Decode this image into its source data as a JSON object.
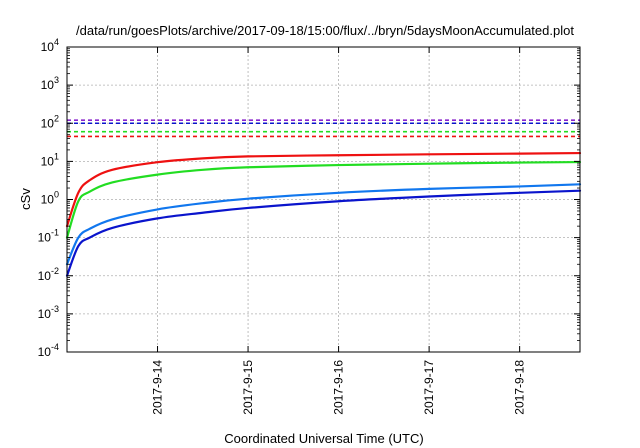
{
  "chart_data": {
    "type": "line",
    "title": "/data/run/goesPlots/archive/2017-09-18/15:00/flux/../bryn/5daysMoonAccumulated.plot",
    "xlabel": "Coordinated Universal Time (UTC)",
    "ylabel": "cSv",
    "yscale": "log",
    "ylim": [
      0.0001,
      10000
    ],
    "yticks": [
      {
        "base": "10",
        "exp": "-4",
        "value": 0.0001
      },
      {
        "base": "10",
        "exp": "-3",
        "value": 0.001
      },
      {
        "base": "10",
        "exp": "-2",
        "value": 0.01
      },
      {
        "base": "10",
        "exp": "-1",
        "value": 0.1
      },
      {
        "base": "10",
        "exp": "0",
        "value": 1
      },
      {
        "base": "10",
        "exp": "1",
        "value": 10
      },
      {
        "base": "10",
        "exp": "2",
        "value": 100
      },
      {
        "base": "10",
        "exp": "3",
        "value": 1000
      },
      {
        "base": "10",
        "exp": "4",
        "value": 10000
      }
    ],
    "xlim": [
      "2017-09-13T00:00",
      "2017-09-18T16:00"
    ],
    "xticks": [
      "2017-9-14",
      "2017-9-15",
      "2017-9-16",
      "2017-9-17",
      "2017-9-18"
    ],
    "grid": true,
    "series": [
      {
        "color": "#ee1111",
        "style": "solid",
        "points": [
          [
            "2017-09-13T00:00",
            0.2
          ],
          [
            "2017-09-13T03:00",
            1.5
          ],
          [
            "2017-09-13T06:00",
            3.2
          ],
          [
            "2017-09-13T12:00",
            6
          ],
          [
            "2017-09-14T00:00",
            9.5
          ],
          [
            "2017-09-14T12:00",
            12
          ],
          [
            "2017-09-15T00:00",
            13.5
          ],
          [
            "2017-09-16T00:00",
            14.5
          ],
          [
            "2017-09-17T00:00",
            15.3
          ],
          [
            "2017-09-18T00:00",
            16
          ],
          [
            "2017-09-18T16:00",
            16.5
          ]
        ]
      },
      {
        "color": "#22dd22",
        "style": "solid",
        "points": [
          [
            "2017-09-13T00:00",
            0.1
          ],
          [
            "2017-09-13T03:00",
            0.9
          ],
          [
            "2017-09-13T06:00",
            1.6
          ],
          [
            "2017-09-13T12:00",
            2.8
          ],
          [
            "2017-09-14T00:00",
            4.5
          ],
          [
            "2017-09-14T12:00",
            6
          ],
          [
            "2017-09-15T00:00",
            7
          ],
          [
            "2017-09-16T00:00",
            8
          ],
          [
            "2017-09-17T00:00",
            8.7
          ],
          [
            "2017-09-18T00:00",
            9.3
          ],
          [
            "2017-09-18T16:00",
            9.6
          ]
        ]
      },
      {
        "color": "#1177ee",
        "style": "solid",
        "points": [
          [
            "2017-09-13T00:00",
            0.02
          ],
          [
            "2017-09-13T03:00",
            0.1
          ],
          [
            "2017-09-13T06:00",
            0.17
          ],
          [
            "2017-09-13T12:00",
            0.3
          ],
          [
            "2017-09-14T00:00",
            0.55
          ],
          [
            "2017-09-14T12:00",
            0.8
          ],
          [
            "2017-09-15T00:00",
            1.05
          ],
          [
            "2017-09-16T00:00",
            1.5
          ],
          [
            "2017-09-17T00:00",
            1.9
          ],
          [
            "2017-09-18T00:00",
            2.2
          ],
          [
            "2017-09-18T16:00",
            2.5
          ]
        ]
      },
      {
        "color": "#0a14cc",
        "style": "solid",
        "points": [
          [
            "2017-09-13T00:00",
            0.01
          ],
          [
            "2017-09-13T03:00",
            0.06
          ],
          [
            "2017-09-13T06:00",
            0.1
          ],
          [
            "2017-09-13T12:00",
            0.18
          ],
          [
            "2017-09-14T00:00",
            0.32
          ],
          [
            "2017-09-14T12:00",
            0.45
          ],
          [
            "2017-09-15T00:00",
            0.6
          ],
          [
            "2017-09-16T00:00",
            0.9
          ],
          [
            "2017-09-17T00:00",
            1.2
          ],
          [
            "2017-09-18T00:00",
            1.5
          ],
          [
            "2017-09-18T16:00",
            1.7
          ]
        ]
      },
      {
        "color": "#8822cc",
        "style": "dashed",
        "constant": 120
      },
      {
        "color": "#0a14cc",
        "style": "dashed",
        "constant": 100
      },
      {
        "color": "#22dd22",
        "style": "dashed",
        "constant": 60
      },
      {
        "color": "#ee1111",
        "style": "dashed",
        "constant": 45
      }
    ]
  }
}
